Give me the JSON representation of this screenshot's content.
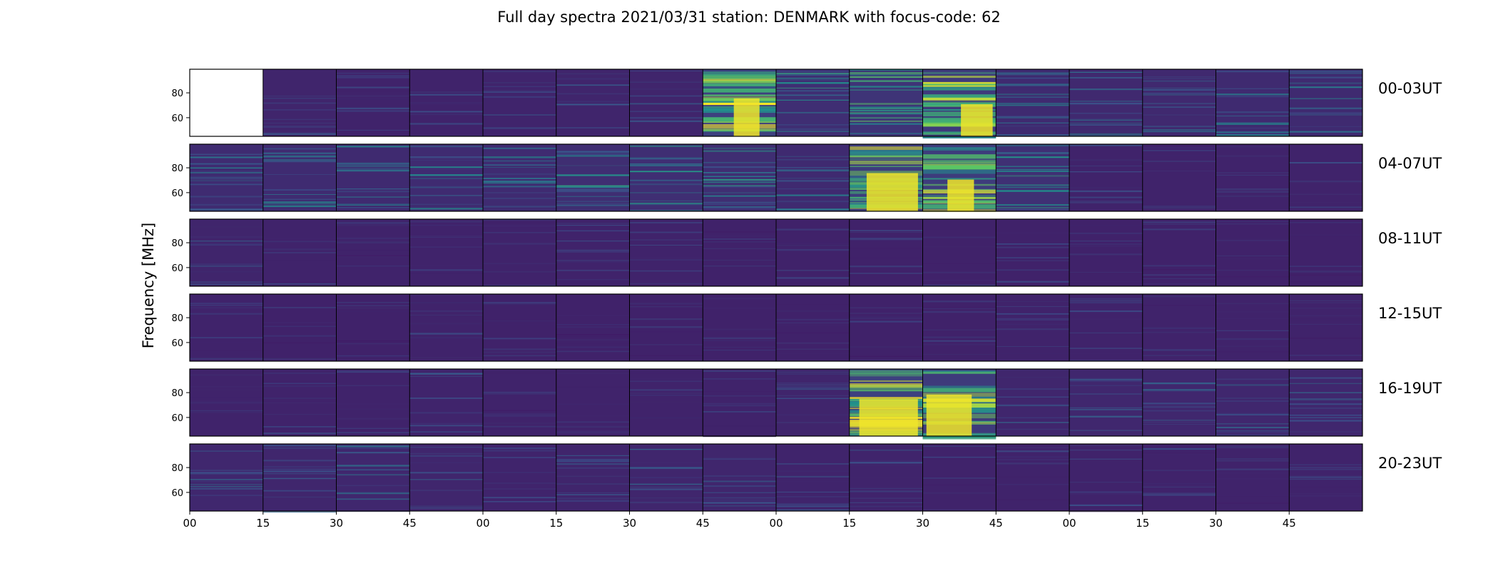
{
  "title": "Full day spectra 2021/03/31 station: DENMARK with focus-code: 62",
  "ylabel": "Frequency [MHz]",
  "colormap": {
    "name": "viridis",
    "low": "#440154",
    "mid": "#21918c",
    "high": "#fde725"
  },
  "chart_data": {
    "type": "heatmap",
    "title": "Full day spectra 2021/03/31 station: DENMARK with focus-code: 62",
    "ylabel": "Frequency [MHz]",
    "x_tick_labels": [
      "00",
      "15",
      "30",
      "45",
      "00",
      "15",
      "30",
      "45",
      "00",
      "15",
      "30",
      "45",
      "00",
      "15",
      "30",
      "45"
    ],
    "y_ticks": [
      60,
      80
    ],
    "ylim": [
      45,
      99
    ],
    "panels_per_row": 16,
    "minutes_per_panel": 15,
    "rows": [
      {
        "label": "00-03UT",
        "hours": [
          0,
          1,
          2,
          3
        ],
        "panel_intensity": [
          null,
          0.25,
          0.22,
          0.22,
          0.24,
          0.26,
          0.26,
          0.95,
          0.5,
          0.65,
          0.8,
          0.4,
          0.36,
          0.36,
          0.4,
          0.4
        ]
      },
      {
        "label": "04-07UT",
        "hours": [
          4,
          5,
          6,
          7
        ],
        "panel_intensity": [
          0.42,
          0.42,
          0.4,
          0.42,
          0.42,
          0.48,
          0.5,
          0.48,
          0.4,
          0.85,
          0.85,
          0.55,
          0.22,
          0.2,
          0.2,
          0.2
        ]
      },
      {
        "label": "08-11UT",
        "hours": [
          8,
          9,
          10,
          11
        ],
        "panel_intensity": [
          0.26,
          0.2,
          0.2,
          0.2,
          0.2,
          0.22,
          0.22,
          0.18,
          0.18,
          0.18,
          0.18,
          0.18,
          0.18,
          0.18,
          0.18,
          0.18
        ]
      },
      {
        "label": "12-15UT",
        "hours": [
          12,
          13,
          14,
          15
        ],
        "panel_intensity": [
          0.22,
          0.18,
          0.18,
          0.2,
          0.18,
          0.18,
          0.18,
          0.18,
          0.18,
          0.18,
          0.18,
          0.2,
          0.2,
          0.2,
          0.2,
          0.2
        ]
      },
      {
        "label": "16-19UT",
        "hours": [
          16,
          17,
          18,
          19
        ],
        "panel_intensity": [
          0.2,
          0.2,
          0.2,
          0.24,
          0.2,
          0.2,
          0.2,
          0.2,
          0.26,
          0.95,
          0.8,
          0.28,
          0.3,
          0.3,
          0.3,
          0.32
        ]
      },
      {
        "label": "20-23UT",
        "hours": [
          20,
          21,
          22,
          23
        ],
        "panel_intensity": [
          0.32,
          0.28,
          0.32,
          0.28,
          0.24,
          0.26,
          0.28,
          0.28,
          0.24,
          0.24,
          0.2,
          0.2,
          0.2,
          0.22,
          0.2,
          0.2
        ]
      }
    ]
  }
}
